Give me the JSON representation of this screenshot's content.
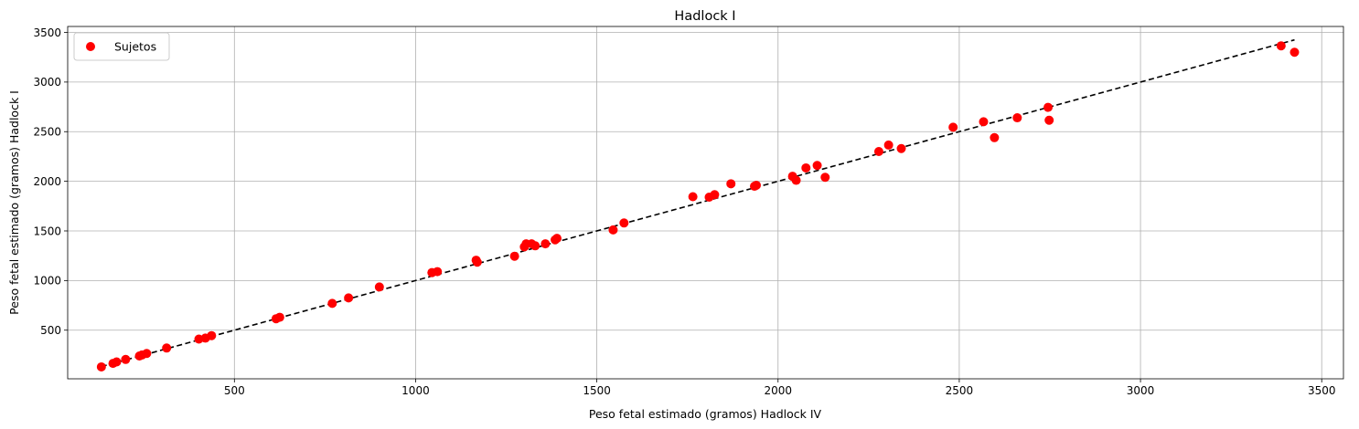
{
  "chart_data": {
    "type": "scatter",
    "title": "Hadlock I",
    "xlabel": "Peso fetal estimado (gramos) Hadlock IV",
    "ylabel": "Peso fetal estimado (gramos) Hadlock I",
    "xlim": [
      40,
      3560
    ],
    "ylim": [
      10,
      3560
    ],
    "xticks": [
      500,
      1000,
      1500,
      2000,
      2500,
      3000,
      3500
    ],
    "yticks": [
      500,
      1000,
      1500,
      2000,
      2500,
      3000,
      3500
    ],
    "grid": true,
    "legend_position": "top-left",
    "series": [
      {
        "name": "Sujetos",
        "color": "#ff0000",
        "x": [
          133,
          165,
          175,
          200,
          238,
          245,
          258,
          313,
          402,
          420,
          437,
          615,
          625,
          770,
          815,
          900,
          1045,
          1060,
          1167,
          1170,
          1273,
          1300,
          1305,
          1320,
          1330,
          1358,
          1385,
          1390,
          1545,
          1575,
          1765,
          1810,
          1825,
          1870,
          1935,
          1940,
          2040,
          2050,
          2077,
          2108,
          2130,
          2278,
          2305,
          2340,
          2483,
          2567,
          2597,
          2660,
          2745,
          2748,
          3388,
          3425
        ],
        "y": [
          130,
          165,
          180,
          205,
          240,
          250,
          265,
          320,
          410,
          420,
          445,
          615,
          630,
          770,
          825,
          935,
          1080,
          1090,
          1205,
          1185,
          1245,
          1340,
          1370,
          1370,
          1350,
          1370,
          1410,
          1425,
          1510,
          1580,
          1845,
          1840,
          1865,
          1975,
          1950,
          1960,
          2050,
          2010,
          2135,
          2160,
          2040,
          2300,
          2365,
          2330,
          2545,
          2600,
          2440,
          2640,
          2745,
          2615,
          3365,
          3300
        ]
      }
    ],
    "reference_line": {
      "style": "dashed",
      "color": "#000000",
      "from": [
        133,
        133
      ],
      "to": [
        3425,
        3425
      ]
    }
  }
}
